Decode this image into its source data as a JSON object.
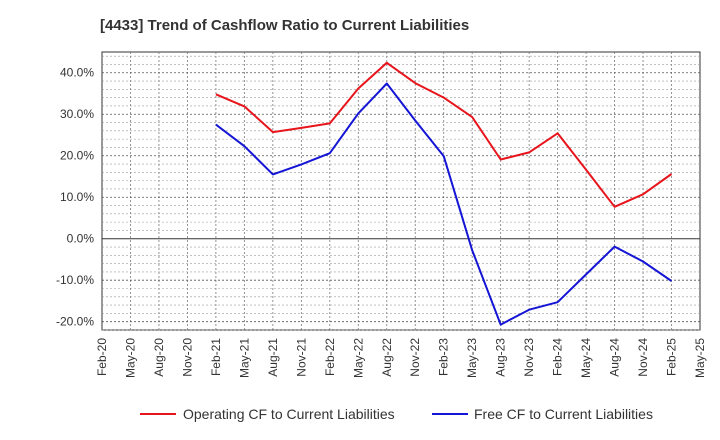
{
  "chart_data": {
    "type": "line",
    "title": "[4433]  Trend of Cashflow Ratio to Current Liabilities",
    "xlabel": "",
    "ylabel": "",
    "categories": [
      "Feb-20",
      "May-20",
      "Aug-20",
      "Nov-20",
      "Feb-21",
      "May-21",
      "Aug-21",
      "Nov-21",
      "Feb-22",
      "May-22",
      "Aug-22",
      "Nov-22",
      "Feb-23",
      "May-23",
      "Aug-23",
      "Nov-23",
      "Feb-24",
      "May-24",
      "Aug-24",
      "Nov-24",
      "Feb-25",
      "May-25"
    ],
    "ylim": [
      -22,
      45
    ],
    "yticks": [
      40,
      30,
      20,
      10,
      0,
      -10,
      -20
    ],
    "ytick_labels": [
      "40.0%",
      "30.0%",
      "20.0%",
      "10.0%",
      "0.0%",
      "-10.0%",
      "-20.0%"
    ],
    "grid": true,
    "legend_position": "bottom",
    "series": [
      {
        "name": "Operating CF to Current Liabilities",
        "color": "#e8141b",
        "values": [
          null,
          null,
          null,
          null,
          34.8,
          31.9,
          25.7,
          26.7,
          27.8,
          36.2,
          42.4,
          37.5,
          34.0,
          29.3,
          19.1,
          20.8,
          25.4,
          16.6,
          7.7,
          10.7,
          15.6,
          null
        ]
      },
      {
        "name": "Free CF to Current Liabilities",
        "color": "#1515d6",
        "values": [
          null,
          null,
          null,
          null,
          27.5,
          22.3,
          15.5,
          17.9,
          20.6,
          30.2,
          37.4,
          28.5,
          19.9,
          -2.8,
          -20.7,
          -17.1,
          -15.3,
          -8.6,
          -1.9,
          -5.5,
          -10.2,
          null
        ]
      }
    ]
  }
}
